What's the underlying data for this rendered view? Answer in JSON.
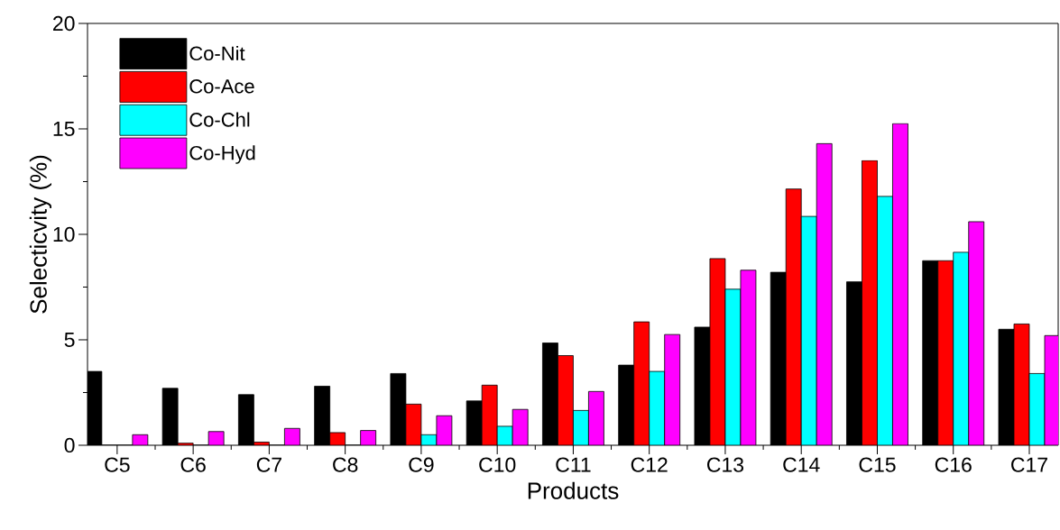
{
  "chart_data": {
    "type": "bar",
    "xlabel": "Products",
    "ylabel": "Selecticvity (%)",
    "categories": [
      "C5",
      "C6",
      "C7",
      "C8",
      "C9",
      "C10",
      "C11",
      "C12",
      "C13",
      "C14",
      "C15",
      "C16",
      "C17"
    ],
    "series": [
      {
        "name": "Co-Nit",
        "color": "#000000",
        "values": [
          3.5,
          2.7,
          2.4,
          2.8,
          3.4,
          2.1,
          4.85,
          3.8,
          5.6,
          8.2,
          7.75,
          8.75,
          5.5
        ]
      },
      {
        "name": "Co-Ace",
        "color": "#ff0000",
        "values": [
          0,
          0.1,
          0.15,
          0.6,
          1.95,
          2.85,
          4.25,
          5.85,
          8.85,
          12.15,
          13.5,
          8.75,
          5.75
        ]
      },
      {
        "name": "Co-Chl",
        "color": "#00ffff",
        "values": [
          0,
          0,
          0,
          0,
          0.5,
          0.9,
          1.65,
          3.5,
          7.4,
          10.85,
          11.8,
          9.15,
          3.4
        ]
      },
      {
        "name": "Co-Hyd",
        "color": "#ff00ff",
        "values": [
          0.5,
          0.65,
          0.8,
          0.7,
          1.4,
          1.7,
          2.55,
          5.25,
          8.3,
          14.3,
          15.25,
          10.6,
          5.2
        ]
      }
    ],
    "ylim": [
      0,
      20
    ],
    "yticks": [
      0,
      5,
      10,
      15,
      20
    ],
    "grid": false,
    "legend": "top left"
  }
}
